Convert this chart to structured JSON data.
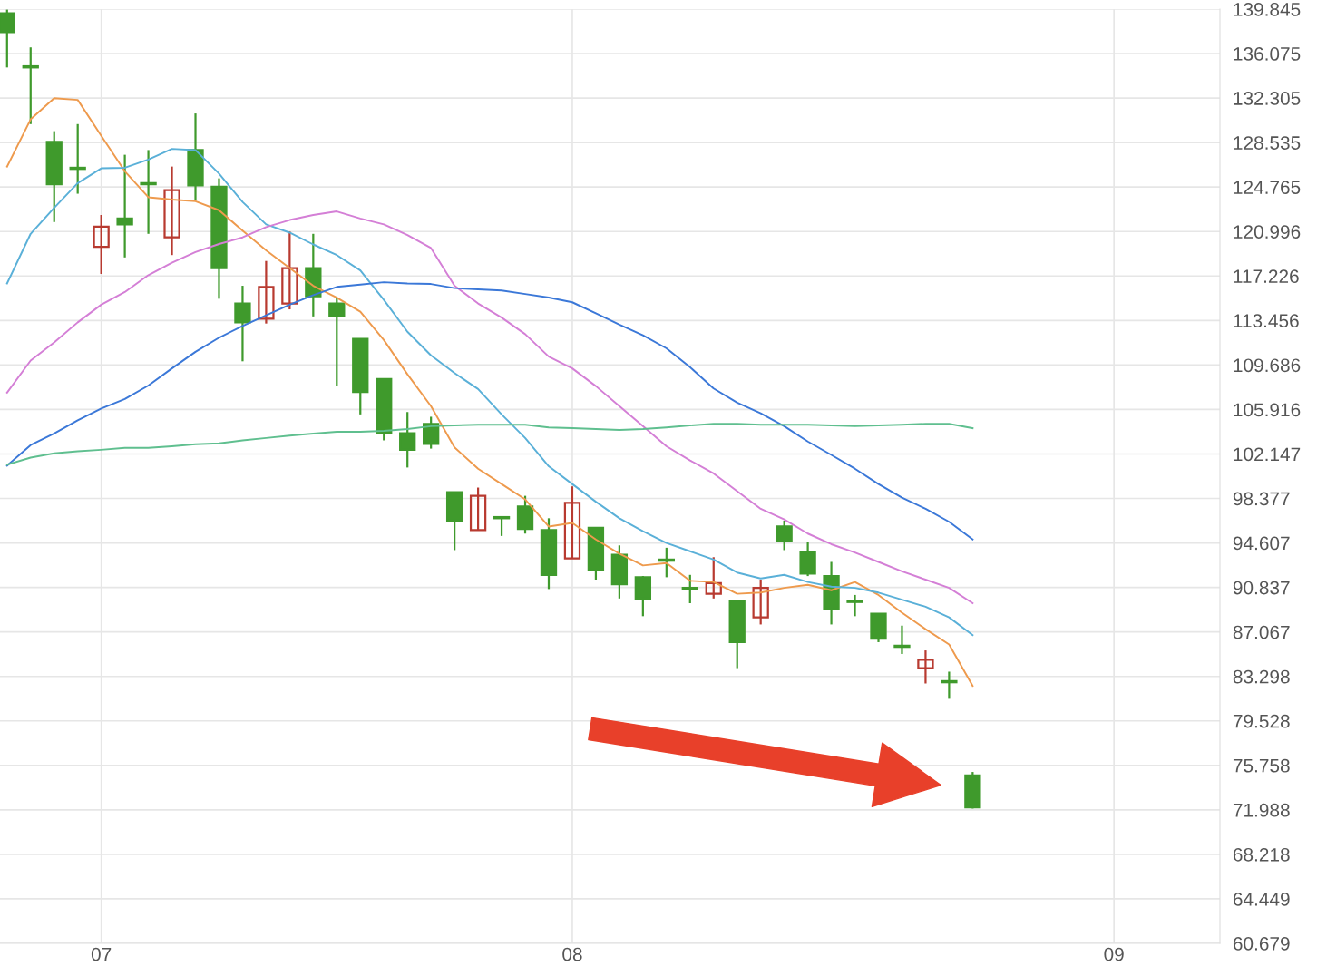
{
  "chart_data": {
    "type": "candlestick",
    "categories": [
      null,
      null,
      null,
      null,
      "07",
      null,
      null,
      null,
      null,
      null,
      null,
      null,
      null,
      null,
      null,
      null,
      null,
      null,
      null,
      null,
      null,
      null,
      null,
      null,
      "08",
      null,
      null,
      null,
      null,
      null,
      null,
      null,
      null,
      null,
      null,
      null,
      null,
      null,
      null,
      null,
      null,
      null,
      null,
      null,
      null,
      null,
      null,
      "09",
      null,
      null,
      null,
      null
    ],
    "ohlc": [
      [
        139.5,
        139.8,
        134.9,
        137.9
      ],
      [
        135.0,
        136.6,
        130.1,
        134.9
      ],
      [
        128.6,
        129.5,
        121.8,
        125.0
      ],
      [
        126.4,
        130.1,
        124.2,
        126.3
      ],
      [
        119.7,
        122.4,
        117.4,
        121.4
      ],
      [
        122.1,
        127.5,
        118.8,
        121.6
      ],
      [
        125.1,
        127.9,
        120.8,
        125.0
      ],
      [
        120.5,
        126.5,
        119.0,
        124.5
      ],
      [
        127.9,
        131.0,
        123.6,
        124.9
      ],
      [
        124.8,
        125.5,
        115.3,
        117.9
      ],
      [
        114.9,
        116.4,
        110.0,
        113.3
      ],
      [
        113.6,
        118.5,
        113.2,
        116.3
      ],
      [
        114.9,
        121.0,
        114.4,
        117.9
      ],
      [
        117.9,
        120.8,
        113.8,
        115.5
      ],
      [
        114.9,
        115.4,
        107.9,
        113.8
      ],
      [
        111.9,
        111.9,
        105.5,
        107.4
      ],
      [
        108.5,
        108.5,
        103.3,
        103.9
      ],
      [
        103.9,
        105.7,
        101.0,
        102.5
      ],
      [
        104.7,
        105.3,
        102.6,
        103.0
      ],
      [
        98.9,
        98.9,
        94.0,
        96.5
      ],
      [
        95.7,
        99.3,
        95.7,
        98.6
      ],
      [
        96.8,
        96.8,
        95.2,
        96.7
      ],
      [
        97.7,
        98.6,
        95.4,
        95.8
      ],
      [
        95.7,
        96.7,
        90.7,
        91.9
      ],
      [
        93.3,
        99.4,
        93.3,
        98.0
      ],
      [
        95.9,
        95.9,
        91.5,
        92.3
      ],
      [
        93.6,
        94.4,
        89.9,
        91.1
      ],
      [
        91.7,
        91.8,
        88.4,
        89.9
      ],
      [
        93.2,
        94.2,
        91.7,
        93.1
      ],
      [
        90.8,
        91.9,
        89.5,
        90.7
      ],
      [
        90.3,
        93.4,
        89.9,
        91.2
      ],
      [
        89.7,
        89.7,
        84.0,
        86.2
      ],
      [
        88.3,
        91.5,
        87.7,
        90.8
      ],
      [
        96.0,
        96.5,
        94.0,
        94.8
      ],
      [
        93.8,
        94.7,
        91.8,
        92.0
      ],
      [
        91.8,
        93.0,
        87.7,
        89.0
      ],
      [
        89.7,
        90.2,
        88.4,
        89.6
      ],
      [
        88.6,
        88.6,
        86.2,
        86.5
      ],
      [
        85.9,
        87.6,
        85.2,
        85.8
      ],
      [
        84.0,
        85.5,
        82.7,
        84.7
      ],
      [
        82.9,
        83.7,
        81.4,
        82.8
      ],
      [
        74.9,
        75.2,
        72.1,
        72.2
      ],
      null,
      null,
      null,
      null,
      null,
      null,
      null,
      null,
      null,
      null
    ],
    "colors": [
      "#3f9a2c",
      "#3f9a2c",
      "#3f9a2c",
      "#3f9a2c",
      "#b83a30",
      "#3f9a2c",
      "#3f9a2c",
      "#b83a30",
      "#3f9a2c",
      "#3f9a2c",
      "#3f9a2c",
      "#b83a30",
      "#b83a30",
      "#3f9a2c",
      "#3f9a2c",
      "#3f9a2c",
      "#3f9a2c",
      "#3f9a2c",
      "#3f9a2c",
      "#3f9a2c",
      "#b83a30",
      "#3f9a2c",
      "#3f9a2c",
      "#3f9a2c",
      "#b83a30",
      "#3f9a2c",
      "#3f9a2c",
      "#3f9a2c",
      "#3f9a2c",
      "#3f9a2c",
      "#b83a30",
      "#3f9a2c",
      "#b83a30",
      "#3f9a2c",
      "#3f9a2c",
      "#3f9a2c",
      "#3f9a2c",
      "#3f9a2c",
      "#3f9a2c",
      "#b83a30",
      "#3f9a2c",
      "#3f9a2c",
      null,
      null,
      null,
      null,
      null,
      null,
      null,
      null,
      null,
      null
    ],
    "series": [
      {
        "type": "line",
        "color": "#ee9a4d",
        "values": [
          126.5,
          130.5,
          132.3,
          132.15,
          129.1,
          126.1,
          123.9,
          123.7,
          123.56,
          122.8,
          121.07,
          119.4,
          117.9,
          116.4,
          115.4,
          114.2,
          111.8,
          108.9,
          106.2,
          102.7,
          100.9,
          99.6,
          98.3,
          96.0,
          96.3,
          94.9,
          93.7,
          92.7,
          92.9,
          91.4,
          91.3,
          90.3,
          90.4,
          90.8,
          91.06,
          90.6,
          91.3,
          90.2,
          88.7,
          87.3,
          86.0,
          82.5,
          null,
          null,
          null,
          null,
          null,
          null,
          null,
          null,
          null,
          null
        ]
      },
      {
        "type": "line",
        "color": "#5ab0d8",
        "values": [
          116.6,
          120.8,
          123.0,
          125.1,
          126.35,
          126.4,
          127.1,
          128.0,
          127.9,
          125.9,
          123.5,
          121.6,
          120.9,
          119.9,
          119.0,
          117.7,
          115.2,
          112.5,
          110.5,
          109.0,
          107.65,
          105.5,
          103.5,
          101.1,
          99.6,
          98.1,
          96.7,
          95.6,
          94.6,
          93.9,
          93.2,
          92.1,
          91.6,
          91.9,
          91.3,
          90.9,
          90.8,
          90.4,
          89.8,
          89.2,
          88.3,
          86.8,
          null,
          null,
          null,
          null,
          null,
          null,
          null,
          null,
          null,
          null
        ]
      },
      {
        "type": "line",
        "color": "#d47fd6",
        "values": [
          107.35,
          110.06,
          111.6,
          113.3,
          114.8,
          115.87,
          117.3,
          118.36,
          119.26,
          119.94,
          120.5,
          121.37,
          121.97,
          122.4,
          122.7,
          122.1,
          121.6,
          120.7,
          119.6,
          116.4,
          114.9,
          113.7,
          112.3,
          110.4,
          109.4,
          107.9,
          106.2,
          104.5,
          102.8,
          101.6,
          100.5,
          99.0,
          97.5,
          96.6,
          95.4,
          94.5,
          93.8,
          93.0,
          92.2,
          91.5,
          90.8,
          89.5,
          null,
          null,
          null,
          null,
          null,
          null,
          null,
          null,
          null,
          null
        ]
      },
      {
        "type": "line",
        "color": "#3b78d8",
        "values": [
          101.16,
          102.9,
          103.88,
          105.0,
          106.0,
          106.8,
          107.95,
          109.4,
          110.8,
          112.0,
          113.0,
          113.9,
          114.8,
          115.6,
          116.3,
          116.5,
          116.7,
          116.6,
          116.55,
          116.2,
          116.1,
          116.0,
          115.7,
          115.4,
          115.0,
          114.06,
          113.1,
          112.2,
          111.1,
          109.5,
          107.7,
          106.5,
          105.6,
          104.5,
          103.2,
          102.07,
          100.9,
          99.6,
          98.45,
          97.5,
          96.4,
          94.9,
          null,
          null,
          null,
          null,
          null,
          null,
          null,
          null,
          null,
          null
        ]
      },
      {
        "type": "line",
        "color": "#5fbf8f",
        "values": [
          101.24,
          101.84,
          102.2,
          102.37,
          102.5,
          102.67,
          102.67,
          102.8,
          102.97,
          103.05,
          103.3,
          103.5,
          103.7,
          103.88,
          104.03,
          104.03,
          104.1,
          104.26,
          104.5,
          104.56,
          104.63,
          104.63,
          104.63,
          104.4,
          104.33,
          104.26,
          104.18,
          104.26,
          104.4,
          104.56,
          104.7,
          104.7,
          104.63,
          104.63,
          104.63,
          104.56,
          104.5,
          104.56,
          104.63,
          104.7,
          104.7,
          104.33,
          null,
          null,
          null,
          null,
          null,
          null,
          null,
          null,
          null,
          null
        ]
      }
    ],
    "ylim": [
      60.679,
      139.845
    ],
    "yticks": [
      60.679,
      64.449,
      68.218,
      71.988,
      75.758,
      79.528,
      83.298,
      87.067,
      90.837,
      94.607,
      98.377,
      102.147,
      105.916,
      109.686,
      113.456,
      117.226,
      120.996,
      124.765,
      128.535,
      132.305,
      136.075,
      139.845
    ],
    "grid": true,
    "legend": false
  }
}
